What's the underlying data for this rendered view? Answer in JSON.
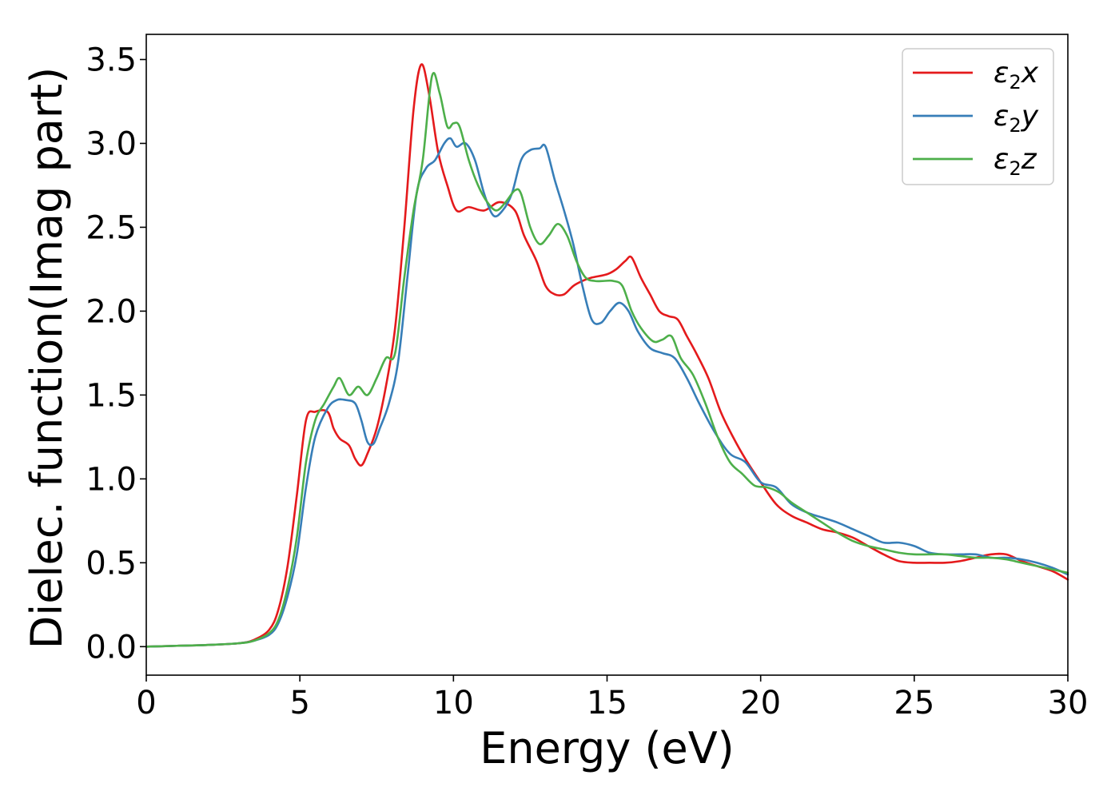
{
  "chart_data": {
    "type": "line",
    "xlabel": "Energy (eV)",
    "ylabel": "Dielec. function(Imag part)",
    "xlim": [
      0,
      30
    ],
    "ylim": [
      -0.17,
      3.65
    ],
    "xticks": [
      0,
      5,
      10,
      15,
      20,
      25,
      30
    ],
    "xtick_labels": [
      "0",
      "5",
      "10",
      "15",
      "20",
      "25",
      "30"
    ],
    "yticks": [
      0.0,
      0.5,
      1.0,
      1.5,
      2.0,
      2.5,
      3.0,
      3.5
    ],
    "ytick_labels": [
      "0.0",
      "0.5",
      "1.0",
      "1.5",
      "2.0",
      "2.5",
      "3.0",
      "3.5"
    ],
    "grid": false,
    "legend_position": "top-right",
    "series": [
      {
        "name": "ε2x",
        "legend_symbol": "ε",
        "legend_sub": "2",
        "legend_var": "x",
        "color": "#e41a1c",
        "x": [
          0,
          1,
          2,
          3,
          3.5,
          4,
          4.3,
          4.6,
          4.9,
          5.2,
          5.5,
          5.9,
          6.1,
          6.3,
          6.6,
          6.8,
          7.0,
          7.2,
          7.5,
          7.8,
          8.1,
          8.4,
          8.7,
          8.95,
          9.2,
          9.5,
          9.8,
          10.1,
          10.5,
          11.0,
          11.5,
          12.0,
          12.3,
          12.7,
          13.0,
          13.3,
          13.6,
          13.9,
          14.2,
          14.5,
          15.0,
          15.3,
          15.6,
          15.8,
          16.1,
          16.4,
          16.7,
          17.0,
          17.3,
          17.6,
          17.9,
          18.3,
          18.7,
          19.1,
          19.5,
          20.0,
          20.5,
          21.0,
          21.5,
          22.0,
          22.5,
          23.0,
          23.5,
          24.0,
          24.5,
          25.0,
          25.5,
          26.0,
          26.5,
          27.0,
          27.5,
          28.0,
          28.5,
          29.0,
          29.5,
          30.0
        ],
        "values": [
          0.0,
          0.005,
          0.01,
          0.02,
          0.04,
          0.1,
          0.22,
          0.48,
          0.9,
          1.35,
          1.4,
          1.4,
          1.3,
          1.24,
          1.2,
          1.12,
          1.08,
          1.15,
          1.3,
          1.55,
          1.9,
          2.5,
          3.2,
          3.47,
          3.3,
          2.95,
          2.75,
          2.6,
          2.62,
          2.6,
          2.65,
          2.6,
          2.45,
          2.3,
          2.15,
          2.1,
          2.1,
          2.15,
          2.18,
          2.2,
          2.22,
          2.25,
          2.3,
          2.32,
          2.2,
          2.1,
          2.0,
          1.97,
          1.95,
          1.85,
          1.75,
          1.6,
          1.4,
          1.25,
          1.12,
          0.98,
          0.85,
          0.78,
          0.74,
          0.7,
          0.68,
          0.65,
          0.6,
          0.55,
          0.51,
          0.5,
          0.5,
          0.5,
          0.51,
          0.53,
          0.55,
          0.55,
          0.51,
          0.48,
          0.45,
          0.4
        ]
      },
      {
        "name": "ε2y",
        "legend_symbol": "ε",
        "legend_sub": "2",
        "legend_var": "y",
        "color": "#377eb8",
        "x": [
          0,
          1,
          2,
          3,
          3.5,
          4,
          4.3,
          4.6,
          4.9,
          5.2,
          5.5,
          5.9,
          6.2,
          6.5,
          6.8,
          7.0,
          7.2,
          7.4,
          7.6,
          7.9,
          8.2,
          8.5,
          8.8,
          9.1,
          9.4,
          9.7,
          9.9,
          10.1,
          10.4,
          10.7,
          11.0,
          11.3,
          11.6,
          11.9,
          12.2,
          12.5,
          12.8,
          13.0,
          13.3,
          13.6,
          13.9,
          14.2,
          14.5,
          14.8,
          15.1,
          15.4,
          15.7,
          16.0,
          16.4,
          16.8,
          17.2,
          17.6,
          18.0,
          18.5,
          19.0,
          19.5,
          20.0,
          20.5,
          21.0,
          21.5,
          22.0,
          22.5,
          23.0,
          23.5,
          24.0,
          24.5,
          25.0,
          25.5,
          26.0,
          26.5,
          27.0,
          27.5,
          28.0,
          28.5,
          29.0,
          29.5,
          30.0
        ],
        "values": [
          0.0,
          0.005,
          0.01,
          0.02,
          0.035,
          0.07,
          0.14,
          0.3,
          0.55,
          0.95,
          1.25,
          1.42,
          1.47,
          1.47,
          1.45,
          1.35,
          1.22,
          1.21,
          1.3,
          1.45,
          1.7,
          2.2,
          2.7,
          2.85,
          2.9,
          3.0,
          3.03,
          2.98,
          3.0,
          2.9,
          2.7,
          2.57,
          2.6,
          2.7,
          2.9,
          2.96,
          2.97,
          2.98,
          2.78,
          2.6,
          2.4,
          2.15,
          1.95,
          1.93,
          2.0,
          2.05,
          2.0,
          1.88,
          1.78,
          1.75,
          1.72,
          1.6,
          1.45,
          1.28,
          1.15,
          1.1,
          0.98,
          0.95,
          0.85,
          0.8,
          0.77,
          0.74,
          0.7,
          0.66,
          0.62,
          0.62,
          0.6,
          0.56,
          0.55,
          0.55,
          0.55,
          0.53,
          0.53,
          0.52,
          0.5,
          0.47,
          0.43
        ]
      },
      {
        "name": "ε2z",
        "legend_symbol": "ε",
        "legend_sub": "2",
        "legend_var": "z",
        "color": "#4daf4a",
        "x": [
          0,
          1,
          2,
          3,
          3.5,
          4,
          4.3,
          4.6,
          4.9,
          5.2,
          5.5,
          5.8,
          6.1,
          6.3,
          6.6,
          6.9,
          7.2,
          7.5,
          7.8,
          8.1,
          8.4,
          8.7,
          9.0,
          9.3,
          9.55,
          9.8,
          10.0,
          10.2,
          10.5,
          10.8,
          11.1,
          11.4,
          11.7,
          12.0,
          12.2,
          12.5,
          12.8,
          13.1,
          13.4,
          13.7,
          14.0,
          14.3,
          14.6,
          14.9,
          15.2,
          15.5,
          15.8,
          16.1,
          16.5,
          16.8,
          17.1,
          17.4,
          17.8,
          18.2,
          18.6,
          19.0,
          19.4,
          19.8,
          20.2,
          20.6,
          21.0,
          21.5,
          22.0,
          22.5,
          23.0,
          23.5,
          24.0,
          24.5,
          25.0,
          25.5,
          26.0,
          26.5,
          27.0,
          27.5,
          28.0,
          28.5,
          29.0,
          29.5,
          30.0
        ],
        "values": [
          0.0,
          0.005,
          0.01,
          0.02,
          0.035,
          0.08,
          0.16,
          0.35,
          0.65,
          1.1,
          1.35,
          1.45,
          1.55,
          1.6,
          1.5,
          1.55,
          1.5,
          1.6,
          1.72,
          1.75,
          2.2,
          2.6,
          2.9,
          3.4,
          3.3,
          3.1,
          3.12,
          3.1,
          2.9,
          2.75,
          2.65,
          2.6,
          2.65,
          2.72,
          2.7,
          2.5,
          2.4,
          2.45,
          2.52,
          2.45,
          2.3,
          2.2,
          2.18,
          2.18,
          2.18,
          2.15,
          2.0,
          1.9,
          1.82,
          1.83,
          1.85,
          1.72,
          1.62,
          1.45,
          1.25,
          1.1,
          1.03,
          0.96,
          0.95,
          0.92,
          0.86,
          0.8,
          0.74,
          0.68,
          0.63,
          0.6,
          0.58,
          0.56,
          0.55,
          0.55,
          0.55,
          0.54,
          0.53,
          0.53,
          0.52,
          0.5,
          0.48,
          0.46,
          0.44
        ]
      }
    ]
  }
}
